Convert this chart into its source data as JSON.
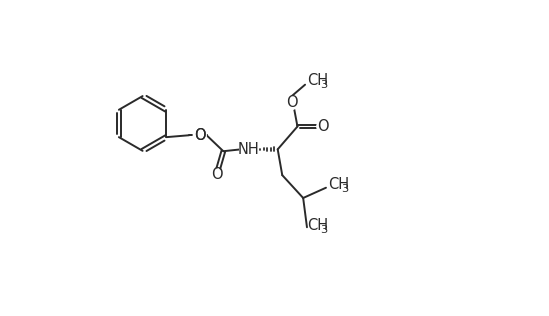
{
  "bg_color": "#ffffff",
  "line_color": "#2a2a2a",
  "line_width": 1.4,
  "font_size": 10.5,
  "figsize": [
    5.49,
    3.16
  ],
  "dpi": 100,
  "xlim": [
    0,
    10
  ],
  "ylim": [
    -3.2,
    3.2
  ]
}
